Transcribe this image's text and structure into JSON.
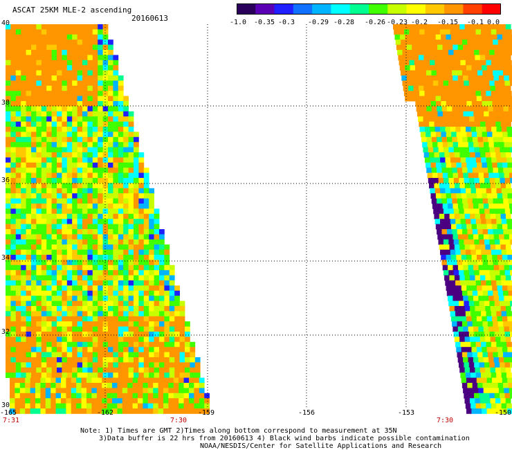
{
  "header": {
    "title": "ASCAT 25KM MLE-2 ascending",
    "date": "20160613"
  },
  "colorbar": {
    "tick_labels": [
      "-1.0",
      "-0.35",
      "-0.3",
      "-0.29",
      "-0.28",
      "-0.26",
      "-0.23",
      "-0.2",
      "-0.15",
      "-0.1",
      "0.0"
    ],
    "colors": [
      "#2a005a",
      "#5a00b4",
      "#2020ff",
      "#1070ff",
      "#00b4ff",
      "#00ffff",
      "#00ff90",
      "#40ff00",
      "#c8ff00",
      "#ffff00",
      "#ffc800",
      "#ff9600",
      "#ff4000",
      "#ff0000"
    ]
  },
  "map": {
    "lat_labels": [
      "40",
      "38",
      "36",
      "34",
      "32",
      "30"
    ],
    "lon_labels": [
      "-165",
      "-162",
      "-159",
      "-156",
      "-153",
      "-150"
    ],
    "time_labels": [
      "7:31",
      "7:30",
      "7:30"
    ],
    "grid": "dotted"
  },
  "palette": {
    "orange": "#ff9600",
    "yellow": "#ffff00",
    "lightyellow": "#c8ff00",
    "green": "#40ff00",
    "seagreen": "#00ff90",
    "cyan": "#00ffff",
    "skyblue": "#00b4ff",
    "blue": "#2020ff",
    "purple": "#4b0082",
    "gold": "#ffc800"
  },
  "notes": {
    "line1": "Note: 1) Times are GMT 2)Times along bottom correspond to measurement at 35N",
    "line2": "3)Data buffer is 22 hrs from 20160613 4) Black wind barbs indicate possible contamination",
    "line3": "NOAA/NESDIS/Center for Satellite Applications and Research"
  }
}
